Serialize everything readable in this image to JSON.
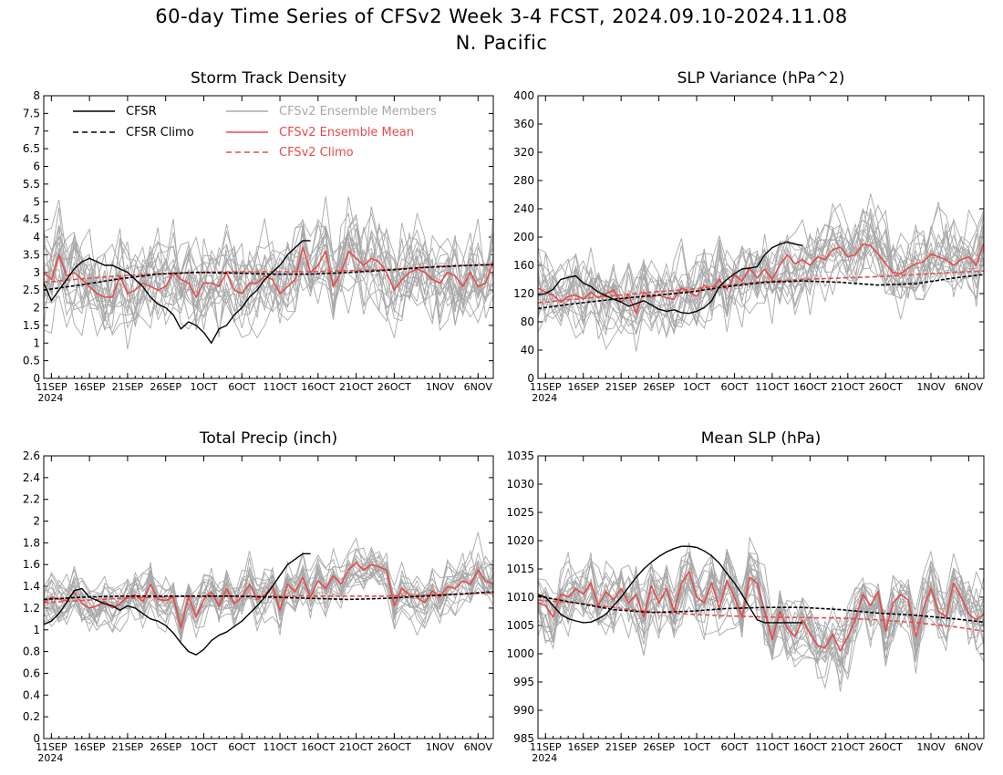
{
  "page": {
    "title": "60-day Time Series of CFSv2 Week 3-4 FCST, 2024.09.10-2024.11.08",
    "subtitle": "N. Pacific"
  },
  "legend": {
    "cfsr": "CFSR",
    "cfsr_climo": "CFSR Climo",
    "members": "CFSv2 Ensemble Members",
    "ens_mean": "CFSv2 Ensemble Mean",
    "cfsv2_climo": "CFSv2 Climo"
  },
  "colors": {
    "cfsr": "#000000",
    "members": "#a8a8a8",
    "ens_mean": "#e84a4a",
    "cfsv2_climo": "#e84a4a"
  },
  "x_axis": {
    "ticks": [
      {
        "day": 1,
        "label": "11SEP"
      },
      {
        "day": 6,
        "label": "16SEP"
      },
      {
        "day": 11,
        "label": "21SEP"
      },
      {
        "day": 16,
        "label": "26SEP"
      },
      {
        "day": 21,
        "label": "1OCT"
      },
      {
        "day": 26,
        "label": "6OCT"
      },
      {
        "day": 31,
        "label": "11OCT"
      },
      {
        "day": 36,
        "label": "16OCT"
      },
      {
        "day": 41,
        "label": "21OCT"
      },
      {
        "day": 46,
        "label": "26OCT"
      },
      {
        "day": 52,
        "label": "1NOV"
      },
      {
        "day": 57,
        "label": "6NOV"
      }
    ],
    "year_label": "2024",
    "range": [
      0,
      59
    ]
  },
  "chart_data": [
    {
      "type": "line",
      "title": "Storm Track Density",
      "ylim": [
        0,
        8
      ],
      "yticks": [
        "0",
        "0.5",
        "1",
        "1.5",
        "2",
        "2.5",
        "3",
        "3.5",
        "4",
        "4.5",
        "5",
        "5.5",
        "6",
        "6.5",
        "7",
        "7.5",
        "8"
      ],
      "show_legend": true,
      "member_count": 20,
      "member_spread": 0.75,
      "member_seed": 11,
      "cfsr": {
        "x": [
          0,
          1,
          2,
          3,
          4,
          5,
          6,
          7,
          8,
          9,
          10,
          11,
          12,
          13,
          14,
          15,
          16,
          17,
          18,
          19,
          20,
          21,
          22,
          23,
          24,
          25,
          26,
          27,
          28,
          29,
          30,
          31,
          32,
          33,
          34,
          35
        ],
        "y": [
          2.7,
          2.2,
          2.5,
          2.8,
          3.1,
          3.3,
          3.4,
          3.3,
          3.2,
          3.2,
          3.1,
          3.0,
          2.8,
          2.6,
          2.3,
          2.1,
          2.0,
          1.8,
          1.4,
          1.6,
          1.5,
          1.3,
          1.0,
          1.4,
          1.5,
          1.8,
          2.0,
          2.3,
          2.5,
          2.8,
          3.0,
          3.2,
          3.5,
          3.7,
          3.9,
          3.9
        ]
      },
      "cfsr_climo": {
        "x": [
          0,
          5,
          10,
          15,
          20,
          25,
          30,
          35,
          40,
          45,
          50,
          55,
          59
        ],
        "y": [
          2.5,
          2.65,
          2.82,
          2.95,
          3.0,
          2.98,
          2.95,
          2.95,
          3.0,
          3.06,
          3.14,
          3.19,
          3.22
        ]
      },
      "ens_mean": {
        "x": [
          0,
          1,
          2,
          3,
          4,
          5,
          6,
          7,
          8,
          9,
          10,
          11,
          12,
          13,
          14,
          15,
          16,
          17,
          18,
          19,
          20,
          21,
          22,
          23,
          24,
          25,
          26,
          27,
          28,
          29,
          30,
          31,
          32,
          33,
          34,
          35,
          36,
          37,
          38,
          39,
          40,
          41,
          42,
          43,
          44,
          45,
          46,
          47,
          48,
          49,
          50,
          51,
          52,
          53,
          54,
          55,
          56,
          57,
          58,
          59
        ],
        "y": [
          3.0,
          2.8,
          3.5,
          2.9,
          3.0,
          2.8,
          2.6,
          2.4,
          2.3,
          2.3,
          2.9,
          2.4,
          2.5,
          2.7,
          2.6,
          2.5,
          2.6,
          3.0,
          2.8,
          2.7,
          2.3,
          2.7,
          2.7,
          2.6,
          3.0,
          2.5,
          2.4,
          2.7,
          2.7,
          2.9,
          2.8,
          2.4,
          2.6,
          2.8,
          3.7,
          3.0,
          3.2,
          3.6,
          2.6,
          3.0,
          3.6,
          3.4,
          3.2,
          3.4,
          3.3,
          3.0,
          2.5,
          2.8,
          3.0,
          3.1,
          3.0,
          2.8,
          2.7,
          3.0,
          2.9,
          2.6,
          3.0,
          2.6,
          2.7,
          3.3
        ]
      },
      "cfsv2_climo": {
        "x": [
          0,
          5,
          10,
          15,
          20,
          25,
          30,
          35,
          40,
          45,
          50,
          55,
          59
        ],
        "y": [
          2.72,
          2.82,
          2.9,
          2.96,
          3.0,
          3.02,
          3.02,
          3.02,
          3.05,
          3.08,
          3.15,
          3.2,
          3.22
        ]
      }
    },
    {
      "type": "line",
      "title": "SLP Variance (hPa^2)",
      "ylim": [
        0,
        400
      ],
      "yticks": [
        "0",
        "40",
        "80",
        "120",
        "160",
        "200",
        "240",
        "280",
        "320",
        "360",
        "400"
      ],
      "show_legend": false,
      "member_count": 20,
      "member_spread": 32,
      "member_seed": 23,
      "cfsr": {
        "x": [
          0,
          1,
          2,
          3,
          4,
          5,
          6,
          7,
          8,
          9,
          10,
          11,
          12,
          13,
          14,
          15,
          16,
          17,
          18,
          19,
          20,
          21,
          22,
          23,
          24,
          25,
          26,
          27,
          28,
          29,
          30,
          31,
          32,
          33,
          34,
          35
        ],
        "y": [
          118,
          120,
          126,
          140,
          143,
          145,
          135,
          130,
          122,
          117,
          112,
          108,
          102,
          106,
          110,
          104,
          98,
          95,
          97,
          93,
          92,
          95,
          100,
          110,
          130,
          140,
          148,
          155,
          156,
          158,
          175,
          185,
          190,
          193,
          190,
          188
        ]
      },
      "cfsr_climo": {
        "x": [
          0,
          5,
          10,
          15,
          20,
          25,
          30,
          35,
          40,
          45,
          50,
          55,
          59
        ],
        "y": [
          99,
          106,
          112,
          117,
          122,
          130,
          136,
          138,
          136,
          132,
          134,
          142,
          147
        ]
      },
      "ens_mean": {
        "x": [
          0,
          1,
          2,
          3,
          4,
          5,
          6,
          7,
          8,
          9,
          10,
          11,
          12,
          13,
          14,
          15,
          16,
          17,
          18,
          19,
          20,
          21,
          22,
          23,
          24,
          25,
          26,
          27,
          28,
          29,
          30,
          31,
          32,
          33,
          34,
          35,
          36,
          37,
          38,
          39,
          40,
          41,
          42,
          43,
          44,
          45,
          46,
          47,
          48,
          49,
          50,
          51,
          52,
          53,
          54,
          55,
          56,
          57,
          58,
          59
        ],
        "y": [
          128,
          122,
          118,
          108,
          116,
          118,
          112,
          122,
          114,
          120,
          125,
          108,
          118,
          92,
          122,
          115,
          118,
          114,
          112,
          128,
          122,
          116,
          132,
          125,
          140,
          126,
          146,
          138,
          156,
          142,
          155,
          140,
          160,
          175,
          162,
          168,
          160,
          172,
          168,
          182,
          186,
          172,
          175,
          190,
          188,
          176,
          162,
          150,
          148,
          156,
          162,
          165,
          176,
          172,
          168,
          160,
          168,
          172,
          160,
          192
        ]
      },
      "cfsv2_climo": {
        "x": [
          0,
          5,
          10,
          15,
          20,
          25,
          30,
          35,
          40,
          45,
          50,
          55,
          59
        ],
        "y": [
          107,
          112,
          117,
          122,
          126,
          132,
          137,
          140,
          142,
          144,
          147,
          150,
          152
        ]
      }
    },
    {
      "type": "line",
      "title": "Total Precip (inch)",
      "ylim": [
        0,
        2.6
      ],
      "yticks": [
        "0",
        "0.2",
        "0.4",
        "0.6",
        "0.8",
        "1",
        "1.2",
        "1.4",
        "1.6",
        "1.8",
        "2",
        "2.2",
        "2.4",
        "2.6"
      ],
      "show_legend": false,
      "member_count": 20,
      "member_spread": 0.13,
      "member_seed": 37,
      "cfsr": {
        "x": [
          0,
          1,
          2,
          3,
          4,
          5,
          6,
          7,
          8,
          9,
          10,
          11,
          12,
          13,
          14,
          15,
          16,
          17,
          18,
          19,
          20,
          21,
          22,
          23,
          24,
          25,
          26,
          27,
          28,
          29,
          30,
          31,
          32,
          33,
          34,
          35
        ],
        "y": [
          1.05,
          1.08,
          1.15,
          1.25,
          1.36,
          1.38,
          1.3,
          1.27,
          1.24,
          1.22,
          1.18,
          1.22,
          1.2,
          1.15,
          1.1,
          1.08,
          1.04,
          0.97,
          0.88,
          0.8,
          0.77,
          0.82,
          0.9,
          0.95,
          0.98,
          1.03,
          1.08,
          1.15,
          1.22,
          1.3,
          1.4,
          1.5,
          1.6,
          1.65,
          1.7,
          1.7
        ]
      },
      "cfsr_climo": {
        "x": [
          0,
          5,
          10,
          15,
          20,
          25,
          30,
          35,
          40,
          45,
          50,
          55,
          59
        ],
        "y": [
          1.28,
          1.3,
          1.31,
          1.31,
          1.31,
          1.31,
          1.3,
          1.29,
          1.28,
          1.29,
          1.31,
          1.33,
          1.35
        ]
      },
      "ens_mean": {
        "x": [
          0,
          1,
          2,
          3,
          4,
          5,
          6,
          7,
          8,
          9,
          10,
          11,
          12,
          13,
          14,
          15,
          16,
          17,
          18,
          19,
          20,
          21,
          22,
          23,
          24,
          25,
          26,
          27,
          28,
          29,
          30,
          31,
          32,
          33,
          34,
          35,
          36,
          37,
          38,
          39,
          40,
          41,
          42,
          43,
          44,
          45,
          46,
          47,
          48,
          49,
          50,
          51,
          52,
          53,
          54,
          55,
          56,
          57,
          58,
          59
        ],
        "y": [
          1.25,
          1.3,
          1.28,
          1.27,
          1.35,
          1.24,
          1.2,
          1.22,
          1.26,
          1.2,
          1.24,
          1.3,
          1.32,
          1.26,
          1.42,
          1.28,
          1.27,
          1.3,
          1.02,
          1.3,
          1.12,
          1.28,
          1.35,
          1.22,
          1.38,
          1.24,
          1.3,
          1.42,
          1.28,
          1.32,
          1.4,
          1.18,
          1.42,
          1.35,
          1.48,
          1.3,
          1.45,
          1.38,
          1.5,
          1.42,
          1.55,
          1.62,
          1.55,
          1.6,
          1.58,
          1.55,
          1.22,
          1.38,
          1.32,
          1.3,
          1.25,
          1.36,
          1.3,
          1.4,
          1.38,
          1.45,
          1.42,
          1.55,
          1.45,
          1.42
        ]
      },
      "cfsv2_climo": {
        "x": [
          0,
          5,
          10,
          15,
          20,
          25,
          30,
          35,
          40,
          45,
          50,
          55,
          59
        ],
        "y": [
          1.25,
          1.27,
          1.29,
          1.3,
          1.31,
          1.31,
          1.31,
          1.31,
          1.31,
          1.31,
          1.32,
          1.33,
          1.34
        ]
      }
    },
    {
      "type": "line",
      "title": "Mean SLP (hPa)",
      "ylim": [
        985,
        1035
      ],
      "yticks": [
        "985",
        "990",
        "995",
        "1000",
        "1005",
        "1010",
        "1015",
        "1020",
        "1025",
        "1030",
        "1035"
      ],
      "show_legend": false,
      "member_count": 20,
      "member_spread": 3.5,
      "member_seed": 53,
      "cfsr": {
        "x": [
          0,
          1,
          2,
          3,
          4,
          5,
          6,
          7,
          8,
          9,
          10,
          11,
          12,
          13,
          14,
          15,
          16,
          17,
          18,
          19,
          20,
          21,
          22,
          23,
          24,
          25,
          26,
          27,
          28,
          29,
          30,
          31,
          32,
          33,
          34,
          35
        ],
        "y": [
          1010.5,
          1010.0,
          1008.5,
          1007.0,
          1006.2,
          1005.8,
          1005.5,
          1005.6,
          1006.2,
          1007.0,
          1008.5,
          1010.0,
          1011.8,
          1013.5,
          1015.0,
          1016.2,
          1017.2,
          1018.0,
          1018.6,
          1019.0,
          1019.0,
          1018.8,
          1018.2,
          1017.3,
          1016.0,
          1014.2,
          1012.5,
          1010.5,
          1008.2,
          1006.0,
          1005.5,
          1005.5,
          1005.5,
          1005.5,
          1005.5,
          1005.5
        ]
      },
      "cfsr_climo": {
        "x": [
          0,
          5,
          10,
          15,
          20,
          25,
          30,
          35,
          40,
          45,
          50,
          55,
          59
        ],
        "y": [
          1010.2,
          1009.0,
          1007.8,
          1007.3,
          1007.5,
          1008.0,
          1008.2,
          1008.2,
          1007.8,
          1007.2,
          1006.8,
          1006.2,
          1005.6
        ]
      },
      "ens_mean": {
        "x": [
          0,
          1,
          2,
          3,
          4,
          5,
          6,
          7,
          8,
          9,
          10,
          11,
          12,
          13,
          14,
          15,
          16,
          17,
          18,
          19,
          20,
          21,
          22,
          23,
          24,
          25,
          26,
          27,
          28,
          29,
          30,
          31,
          32,
          33,
          34,
          35,
          36,
          37,
          38,
          39,
          40,
          41,
          42,
          43,
          44,
          45,
          46,
          47,
          48,
          49,
          50,
          51,
          52,
          53,
          54,
          55,
          56,
          57,
          58,
          59
        ],
        "y": [
          1009.0,
          1008.5,
          1006.5,
          1010.5,
          1010.0,
          1011.5,
          1010.5,
          1012.5,
          1008.5,
          1011.0,
          1009.5,
          1011.5,
          1009.0,
          1010.5,
          1006.5,
          1012.0,
          1009.0,
          1011.5,
          1007.5,
          1012.5,
          1014.5,
          1010.0,
          1009.0,
          1012.5,
          1008.0,
          1013.0,
          1010.0,
          1006.5,
          1013.5,
          1012.5,
          1007.5,
          1002.5,
          1007.5,
          1004.5,
          1003.0,
          1006.0,
          1003.5,
          1001.5,
          1001.0,
          1003.5,
          1000.5,
          1003.0,
          1006.0,
          1010.5,
          1008.5,
          1011.0,
          1004.0,
          1009.0,
          1010.5,
          1009.5,
          1003.0,
          1008.0,
          1011.5,
          1007.5,
          1006.5,
          1012.5,
          1010.0,
          1007.0,
          1006.0,
          1007.0
        ]
      },
      "cfsv2_climo": {
        "x": [
          0,
          5,
          10,
          15,
          20,
          25,
          30,
          35,
          40,
          45,
          50,
          55,
          59
        ],
        "y": [
          1009.5,
          1009.0,
          1008.2,
          1007.4,
          1007.0,
          1006.7,
          1006.5,
          1006.4,
          1006.3,
          1006.0,
          1005.5,
          1004.8,
          1004.0
        ]
      }
    }
  ]
}
